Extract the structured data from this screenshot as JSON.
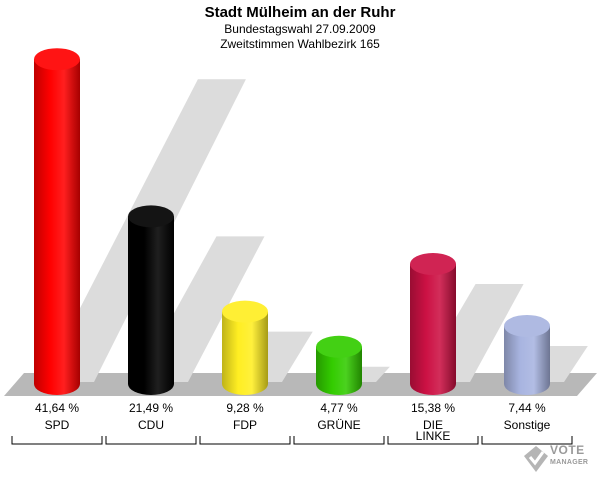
{
  "header": {
    "title": "Stadt Mülheim an der Ruhr",
    "subtitle1": "Bundestagswahl 27.09.2009",
    "subtitle2": "Zweitstimmen Wahlbezirk 165"
  },
  "logo": {
    "line1": "VOTE",
    "line2": "MANAGER"
  },
  "colors": {
    "SPD": "#ff0000",
    "CDU": "#000000",
    "FDP": "#ffee22",
    "GRÜNE": "#33cc00",
    "DIE LINKE": "#cc1144",
    "Sonstige": "#a8b4e0"
  },
  "chart_data": {
    "type": "bar",
    "title": "Stadt Mülheim an der Ruhr",
    "categories": [
      "SPD",
      "CDU",
      "FDP",
      "GRÜNE",
      "DIE LINKE",
      "Sonstige"
    ],
    "category_lines": [
      [
        "SPD"
      ],
      [
        "CDU"
      ],
      [
        "FDP"
      ],
      [
        "GRÜNE"
      ],
      [
        "DIE",
        "LINKE"
      ],
      [
        "Sonstige"
      ]
    ],
    "values": [
      41.64,
      21.49,
      9.28,
      4.77,
      15.38,
      7.44
    ],
    "value_labels": [
      "41,64 %",
      "21,49 %",
      "9,28 %",
      "4,77 %",
      "15,38 %",
      "7,44 %"
    ],
    "unit": "%",
    "grid": false,
    "legend": "none"
  }
}
